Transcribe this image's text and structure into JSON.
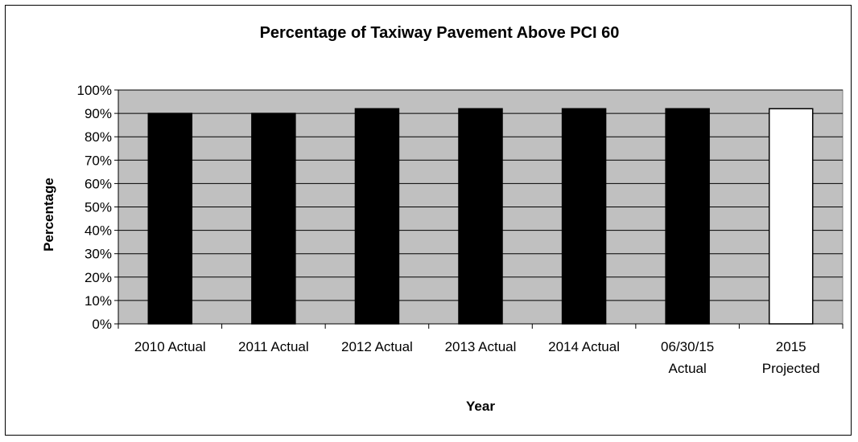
{
  "chart_data": {
    "type": "bar",
    "title": "Percentage of Taxiway Pavement Above PCI 60",
    "xlabel": "Year",
    "ylabel": "Percentage",
    "categories": [
      [
        "2010 Actual"
      ],
      [
        "2011 Actual"
      ],
      [
        "2012 Actual"
      ],
      [
        "2013 Actual"
      ],
      [
        "2014 Actual"
      ],
      [
        "06/30/15",
        "Actual"
      ],
      [
        "2015",
        "Projected"
      ]
    ],
    "values": [
      90,
      90,
      92,
      92,
      92,
      92,
      92
    ],
    "bar_styles": [
      "actual",
      "actual",
      "actual",
      "actual",
      "actual",
      "actual",
      "projected"
    ],
    "ylim": [
      0,
      100
    ],
    "yticks": [
      0,
      10,
      20,
      30,
      40,
      50,
      60,
      70,
      80,
      90,
      100
    ],
    "ytick_suffix": "%",
    "grid": true,
    "legend": "none",
    "colors": {
      "plot_background": "#c0c0c0",
      "actual_bar": "#000000",
      "projected_bar": "#ffffff",
      "gridline": "#000000"
    }
  }
}
